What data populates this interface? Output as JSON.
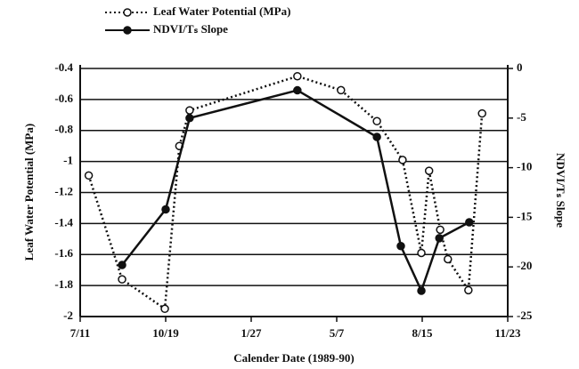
{
  "chart_data": {
    "type": "line",
    "x_label": "Calender Date (1989-90)",
    "y_label": "Leaf Water Potential (MPa)",
    "y2_label": "NDVI/Tₛ Slope",
    "xlim": [
      0,
      500
    ],
    "xticks": [
      {
        "value": 0,
        "label": "7/11"
      },
      {
        "value": 100,
        "label": "10/19"
      },
      {
        "value": 200,
        "label": "1/27"
      },
      {
        "value": 300,
        "label": "5/7"
      },
      {
        "value": 400,
        "label": "8/15"
      },
      {
        "value": 500,
        "label": "11/23"
      }
    ],
    "ylim": [
      -2,
      -0.4
    ],
    "yticks": [
      -2,
      -1.8,
      -1.6,
      -1.4,
      -1.2,
      -1,
      -0.8,
      -0.6,
      -0.4
    ],
    "y2lim": [
      -25,
      0
    ],
    "y2ticks": [
      -25,
      -20,
      -15,
      -10,
      -5,
      0
    ],
    "grid": true,
    "series": [
      {
        "name": "Leaf Water Potential (MPa)",
        "color": "#111111",
        "marker": "open",
        "dash": "dotted",
        "x": [
          10,
          49,
          99,
          116,
          128,
          254,
          305,
          347,
          377,
          399,
          408,
          421,
          430,
          454,
          470
        ],
        "values": [
          -1.09,
          -1.76,
          -1.95,
          -0.9,
          -0.67,
          -0.45,
          -0.54,
          -0.74,
          -0.99,
          -1.59,
          -1.06,
          -1.44,
          -1.63,
          -1.83,
          -0.69
        ]
      },
      {
        "name": "NDVI/Tₛ Slope",
        "color": "#111111",
        "marker": "filled",
        "dash": "solid",
        "axis": "y2",
        "x": [
          49,
          100,
          128,
          254,
          347,
          375,
          399,
          420,
          455
        ],
        "values": [
          -19.8,
          -14.2,
          -5,
          -2.2,
          -6.9,
          -17.9,
          -22.4,
          -17.1,
          -15.5
        ]
      }
    ]
  }
}
